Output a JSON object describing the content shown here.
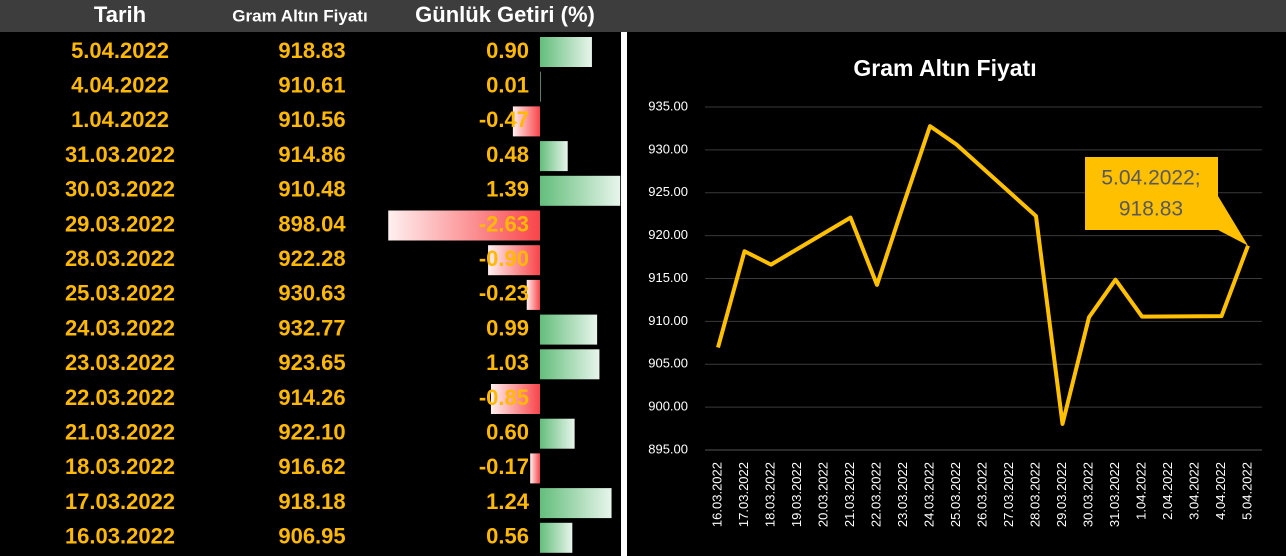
{
  "table": {
    "header": [
      "Tarih",
      "Gram Altın Fiyatı",
      "Günlük Getiri (%)"
    ],
    "rows": [
      [
        "5.04.2022",
        "918.83",
        "0.90"
      ],
      [
        "4.04.2022",
        "910.61",
        "0.01"
      ],
      [
        "1.04.2022",
        "910.56",
        "-0.47"
      ],
      [
        "31.03.2022",
        "914.86",
        "0.48"
      ],
      [
        "30.03.2022",
        "910.48",
        "1.39"
      ],
      [
        "29.03.2022",
        "898.04",
        "-2.63"
      ],
      [
        "28.03.2022",
        "922.28",
        "-0.90"
      ],
      [
        "25.03.2022",
        "930.63",
        "-0.23"
      ],
      [
        "24.03.2022",
        "932.77",
        "0.99"
      ],
      [
        "23.03.2022",
        "923.65",
        "1.03"
      ],
      [
        "22.03.2022",
        "914.26",
        "-0.85"
      ],
      [
        "21.03.2022",
        "922.10",
        "0.60"
      ],
      [
        "18.03.2022",
        "916.62",
        "-0.17"
      ],
      [
        "17.03.2022",
        "918.18",
        "1.24"
      ],
      [
        "16.03.2022",
        "906.95",
        "0.56"
      ]
    ]
  },
  "chart_data": {
    "type": "line",
    "title": "Gram Altın Fiyatı",
    "x": [
      "16.03.2022",
      "17.03.2022",
      "18.03.2022",
      "21.03.2022",
      "22.03.2022",
      "23.03.2022",
      "24.03.2022",
      "25.03.2022",
      "28.03.2022",
      "29.03.2022",
      "30.03.2022",
      "31.03.2022",
      "1.04.2022",
      "4.04.2022",
      "5.04.2022"
    ],
    "series": [
      {
        "name": "Gram Altın Fiyatı",
        "color": "#ffc000",
        "values": [
          906.95,
          918.18,
          916.62,
          922.1,
          914.26,
          923.65,
          932.77,
          930.63,
          922.28,
          898.04,
          910.48,
          914.86,
          910.56,
          910.61,
          918.83
        ]
      }
    ],
    "xticks": [
      "16.03.2022",
      "17.03.2022",
      "18.03.2022",
      "19.03.2022",
      "20.03.2022",
      "21.03.2022",
      "22.03.2022",
      "23.03.2022",
      "24.03.2022",
      "25.03.2022",
      "26.03.2022",
      "27.03.2022",
      "28.03.2022",
      "29.03.2022",
      "30.03.2022",
      "31.03.2022",
      "1.04.2022",
      "2.04.2022",
      "3.04.2022",
      "4.04.2022",
      "5.04.2022"
    ],
    "ylim": [
      895,
      935
    ],
    "yticks": [
      {
        "value": 895,
        "label": "895.00"
      },
      {
        "value": 900,
        "label": "900.00"
      },
      {
        "value": 905,
        "label": "905.00"
      },
      {
        "value": 910,
        "label": "910.00"
      },
      {
        "value": 915,
        "label": "915.00"
      },
      {
        "value": 920,
        "label": "920.00"
      },
      {
        "value": 925,
        "label": "925.00"
      },
      {
        "value": 930,
        "label": "930.00"
      },
      {
        "value": 935,
        "label": "935.00"
      }
    ],
    "grid": true,
    "annotation": "5.04.2022;"
  }
}
